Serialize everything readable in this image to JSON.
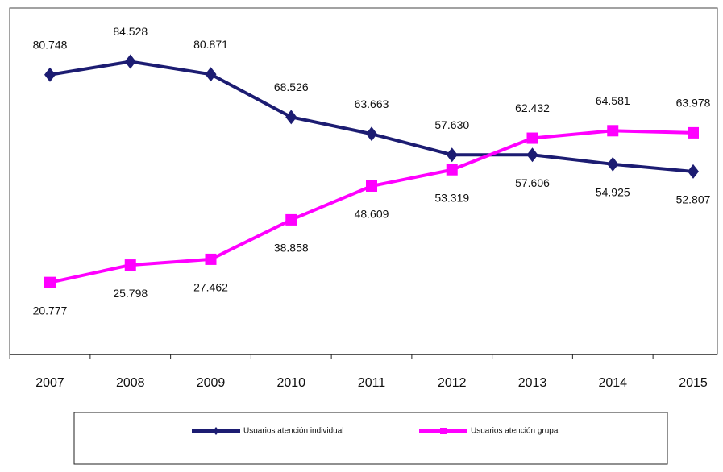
{
  "chart_data": {
    "type": "line",
    "categories": [
      "2007",
      "2008",
      "2009",
      "2010",
      "2011",
      "2012",
      "2013",
      "2014",
      "2015"
    ],
    "series": [
      {
        "name": "Usuarios atención individual",
        "color": "#1c1c72",
        "marker": "diamond",
        "values": [
          80748,
          84528,
          80871,
          68526,
          63663,
          57630,
          57606,
          54925,
          52807
        ],
        "value_labels": [
          "80.748",
          "84.528",
          "80.871",
          "68.526",
          "63.663",
          "57.630",
          "57.606",
          "54.925",
          "52.807"
        ]
      },
      {
        "name": "Usuarios atención grupal",
        "color": "#ff00ff",
        "marker": "square",
        "values": [
          20777,
          25798,
          27462,
          38858,
          48609,
          53319,
          62432,
          64581,
          63978
        ],
        "value_labels": [
          "20.777",
          "25.798",
          "27.462",
          "38.858",
          "48.609",
          "53.319",
          "62.432",
          "64.581",
          "63.978"
        ]
      }
    ],
    "ylim": [
      0,
      100000
    ],
    "legend": "bottom"
  }
}
